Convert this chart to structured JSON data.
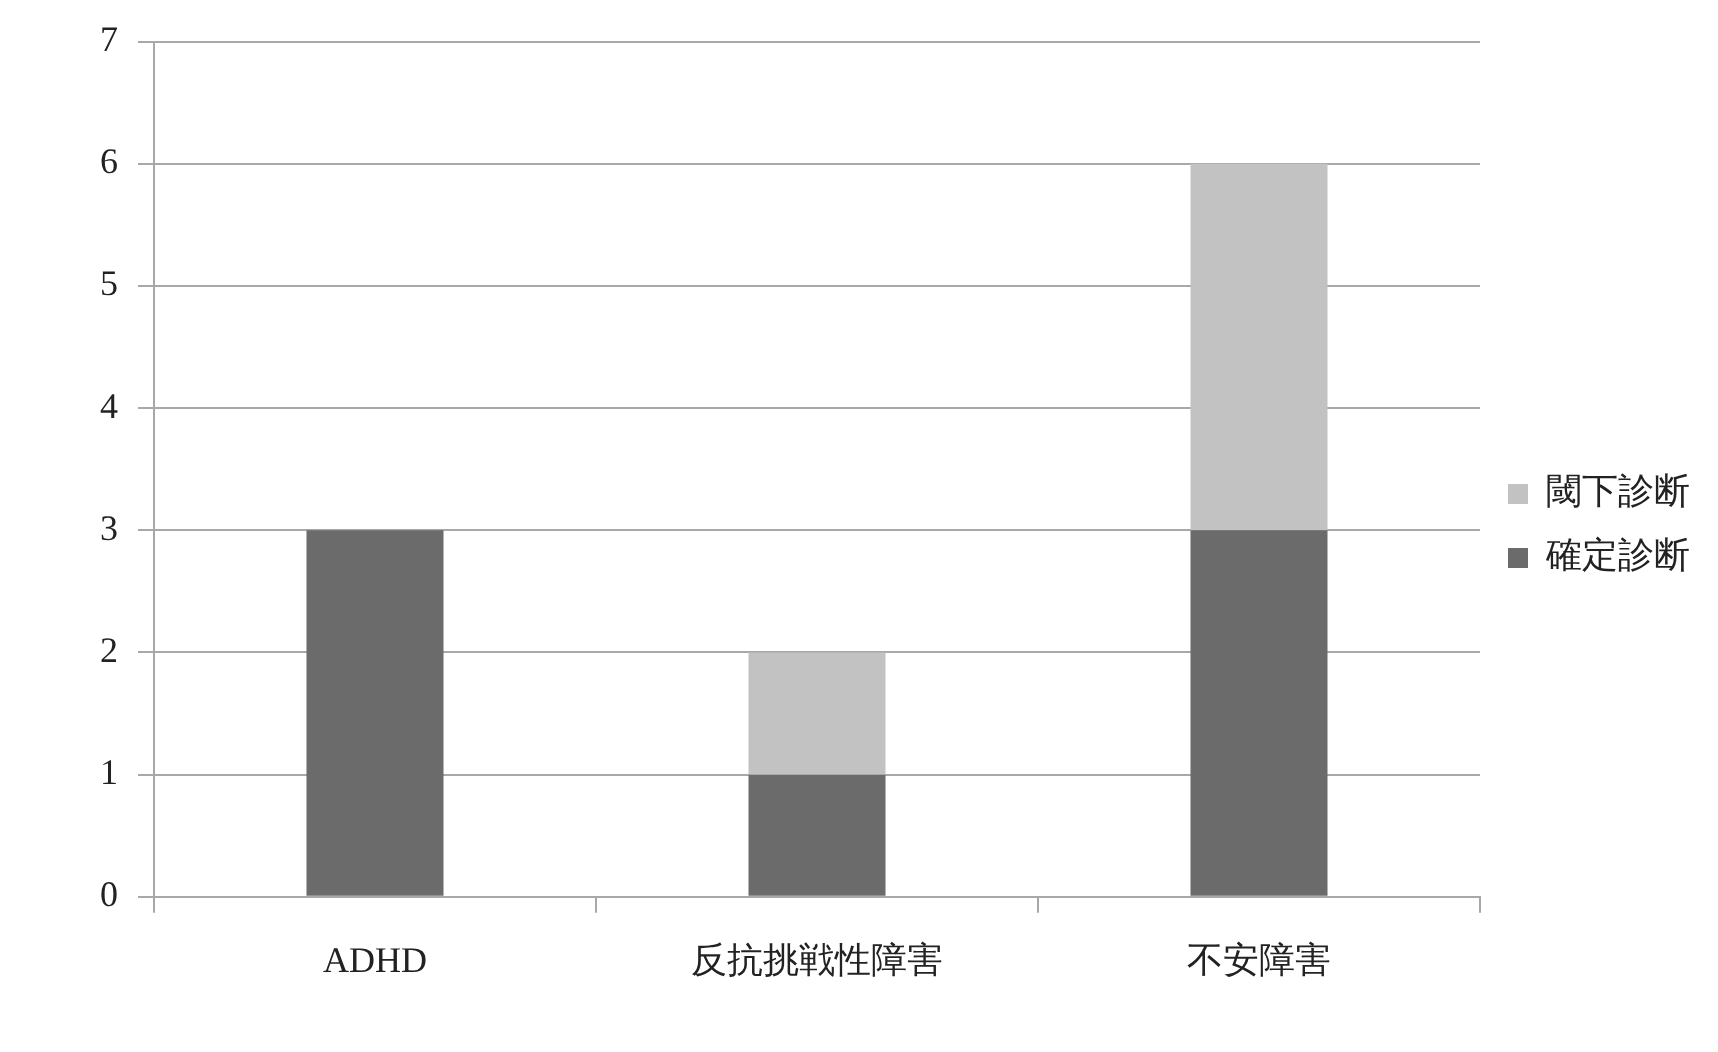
{
  "chart_data": {
    "type": "bar",
    "stacked": true,
    "categories": [
      "ADHD",
      "反抗挑戦性障害",
      "不安障害"
    ],
    "series": [
      {
        "name": "確定診断",
        "color": "#6b6b6b",
        "values": [
          3,
          1,
          3
        ]
      },
      {
        "name": "閾下診断",
        "color": "#c2c2c2",
        "values": [
          0,
          1,
          3
        ]
      }
    ],
    "ylim": [
      0,
      7
    ],
    "yticks": [
      0,
      1,
      2,
      3,
      4,
      5,
      6,
      7
    ],
    "grid": "y",
    "legend": "right"
  }
}
